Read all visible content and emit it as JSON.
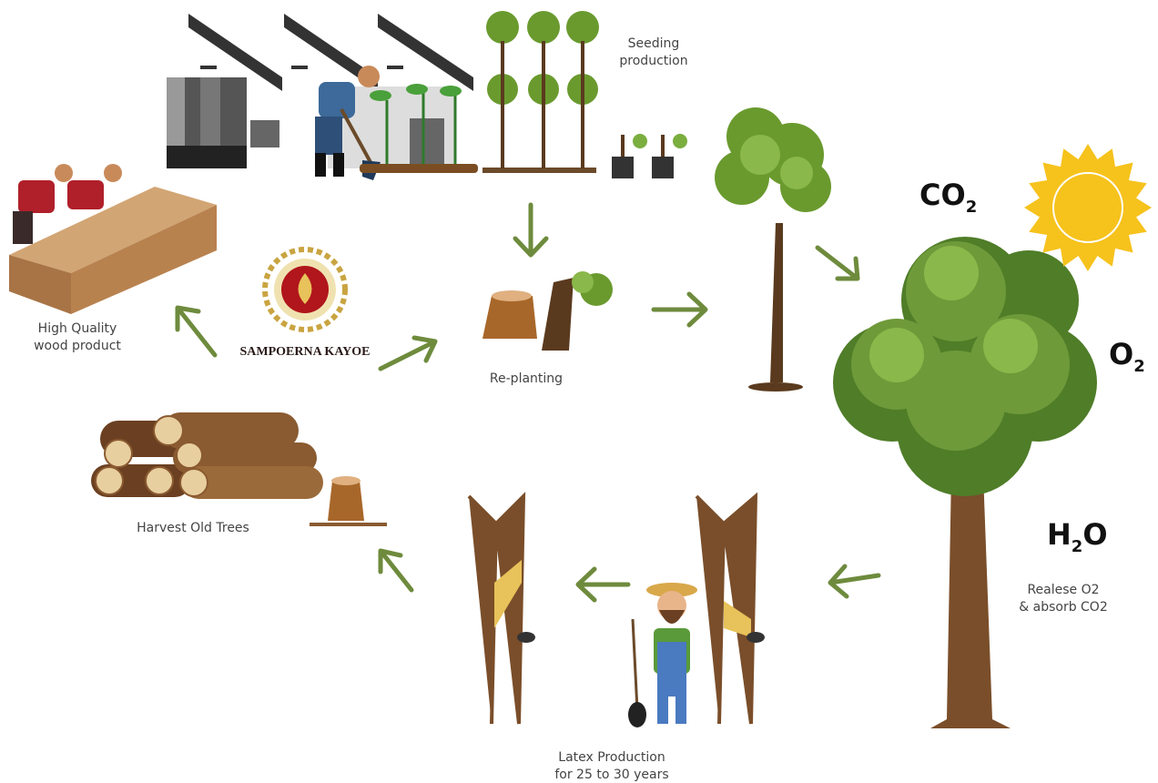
{
  "steps": {
    "seeding": {
      "lines": [
        "Seeding",
        "production"
      ]
    },
    "replanting": {
      "label": "Re-planting"
    },
    "wood_product": {
      "lines": [
        "High Quality",
        "wood product"
      ]
    },
    "harvest": {
      "label": "Harvest Old Trees"
    },
    "latex": {
      "lines": [
        "Latex Production",
        "for 25 to 30 years"
      ]
    },
    "release": {
      "lines": [
        "Realese O2",
        "& absorb CO2"
      ]
    }
  },
  "logo": {
    "name": "SAMPOERNA KAYOE"
  },
  "chemicals": {
    "co2": {
      "main": "CO",
      "sub": "2"
    },
    "o2": {
      "main": "O",
      "sub": "2"
    },
    "h2o": {
      "main": "H",
      "sub": "2",
      "end": "O"
    }
  }
}
